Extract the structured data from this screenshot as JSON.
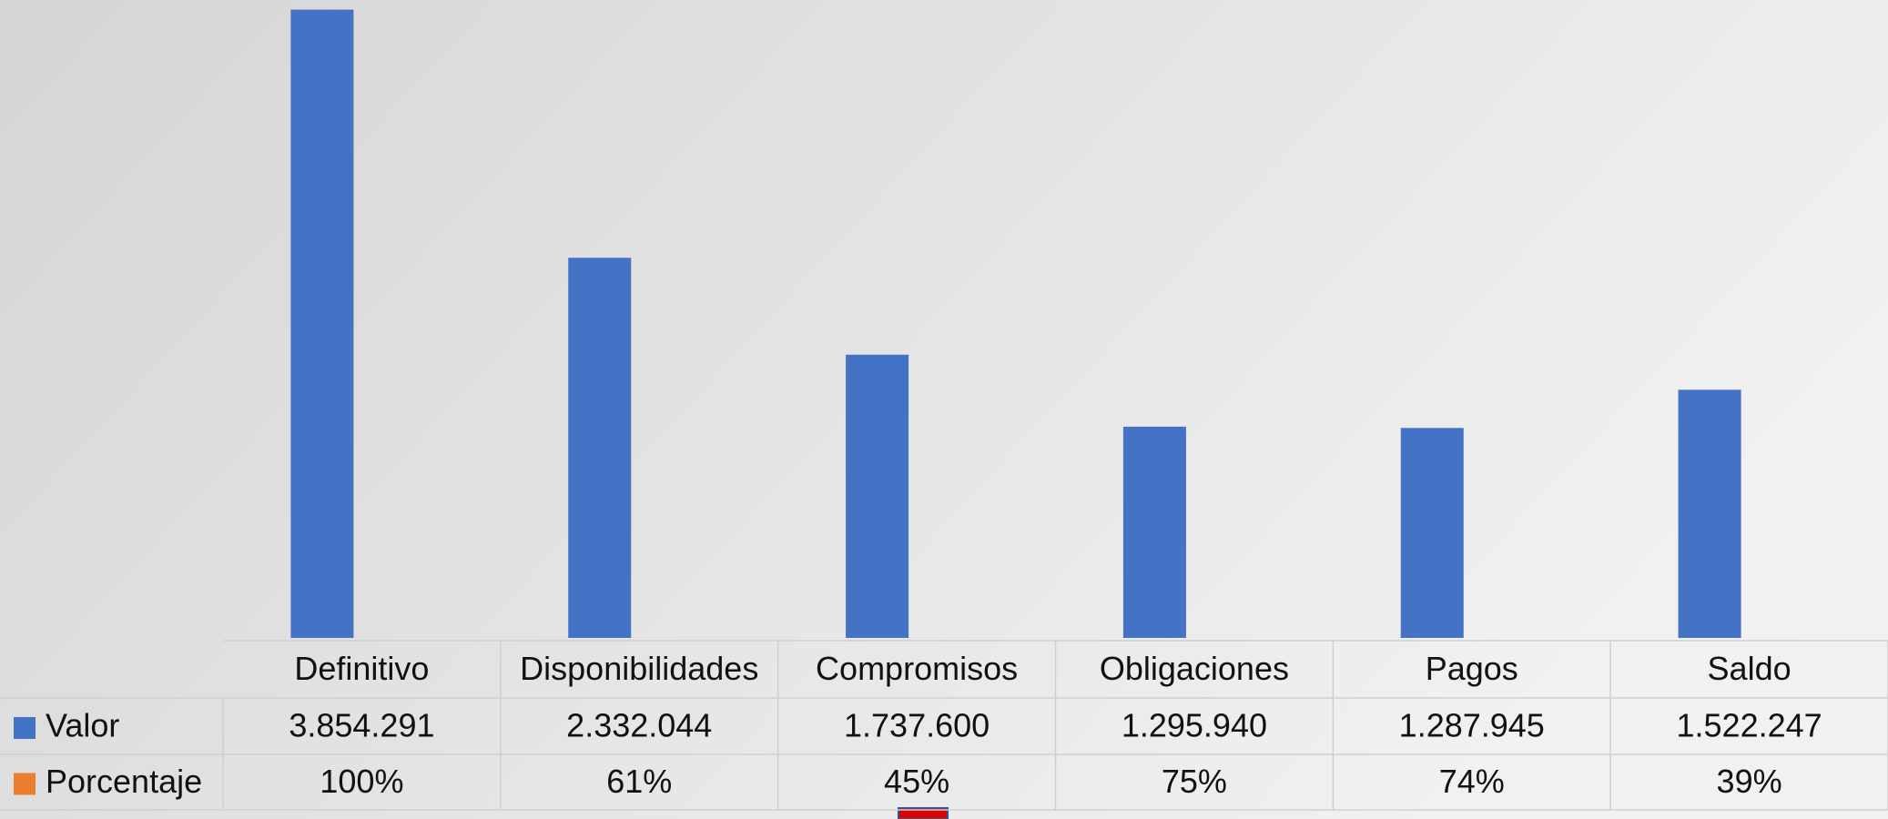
{
  "chart_data": {
    "type": "bar",
    "categories": [
      "Definitivo",
      "Disponibilidades",
      "Compromisos",
      "Obligaciones",
      "Pagos",
      "Saldo"
    ],
    "series": [
      {
        "name": "Valor",
        "color": "#4472c4",
        "values": [
          3854291,
          2332044,
          1737600,
          1295940,
          1287945,
          1522247
        ],
        "value_labels": [
          "3.854.291",
          "2.332.044",
          "1.737.600",
          "1.295.940",
          "1.287.945",
          "1.522.247"
        ]
      },
      {
        "name": "Porcentaje",
        "color": "#ed7d31",
        "values": [
          100,
          61,
          45,
          75,
          74,
          39
        ],
        "value_labels": [
          "100%",
          "61%",
          "45%",
          "75%",
          "74%",
          "39%"
        ]
      }
    ],
    "ylim": [
      0,
      4000000
    ]
  }
}
